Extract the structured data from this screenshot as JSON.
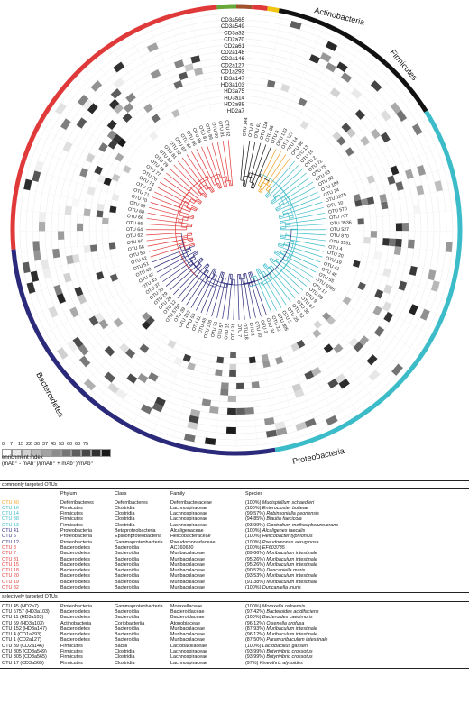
{
  "heatmap_labels": [
    "CD3a565",
    "CD3a549",
    "CD3a32",
    "CD2a70",
    "CD2a61",
    "CD2a148",
    "CD2a146",
    "CD2a127",
    "CD1a293",
    "HD3a147",
    "HD3a103",
    "HD3a75",
    "HD3a14",
    "HD2a88",
    "HD2a7"
  ],
  "phylum_arcs": [
    {
      "name": "Actinobacteria",
      "color": "#111111"
    },
    {
      "name": "Firmicutes",
      "color": "#3cbcc8"
    },
    {
      "name": "Proteobacteria",
      "color": "#2b2a7a"
    },
    {
      "name": "Bacteroidetes",
      "color": "#e0393a"
    }
  ],
  "top_arcs": [
    {
      "color": "#66a839"
    },
    {
      "color": "#a0522d"
    },
    {
      "color": "#e0393a"
    },
    {
      "color": "#f1c40f"
    }
  ],
  "tip_labels": [
    "OTU 144",
    "OTU 8",
    "OTU 61",
    "OTU 110",
    "OTU 88",
    "OTU 6",
    "OTU 133",
    "OTU 127",
    "OTU 14",
    "OTU 38",
    "OTU 13",
    "OTU 16",
    "OTU 2",
    "OTU 72",
    "OTU 75",
    "OTU 63",
    "OTU 53",
    "OTU 189",
    "OTU 24",
    "OTU 1275",
    "OTU 10",
    "OTU 570",
    "OTU 707",
    "OTU 3536",
    "OTU 527",
    "OTU 870",
    "OTU 3551",
    "OTU 4",
    "OTU 20",
    "OTU 19",
    "OTU 41",
    "OTU 48",
    "OTU 55",
    "OTU 1005",
    "OTU 17",
    "OTU 99",
    "OTU 9",
    "OTU 67",
    "OTU 30",
    "OTU 32",
    "OTU 25",
    "OTU 5",
    "OTU 805",
    "OTU 22",
    "OTU 34",
    "OTU 3",
    "OTU 40",
    "OTU 1",
    "OTU 18",
    "OTU 7",
    "OTU 31",
    "OTU 15",
    "OTU 57",
    "OTU 21",
    "OTU 126",
    "OTU 45",
    "OTU 11",
    "OTU 59",
    "OTU 152",
    "OTU 39",
    "OTU 5757",
    "OTU 12",
    "OTU 26",
    "OTU 29",
    "OTU 33",
    "OTU 37",
    "OTU 43",
    "OTU 47",
    "OTU 49",
    "OTU 51",
    "OTU 52",
    "OTU 56",
    "OTU 58",
    "OTU 60",
    "OTU 62",
    "OTU 64",
    "OTU 65",
    "OTU 66",
    "OTU 68",
    "OTU 69",
    "OTU 70",
    "OTU 71",
    "OTU 73",
    "OTU 74",
    "OTU 76",
    "OTU 77",
    "OTU 78",
    "OTU 79",
    "OTU 80",
    "OTU 81",
    "OTU 82",
    "OTU 83",
    "OTU 84",
    "OTU 85",
    "OTU 86",
    "OTU 87",
    "OTU 89",
    "OTU 90",
    "OTU 91",
    "OTU 92"
  ],
  "legend": {
    "ticks": [
      "0",
      "7",
      "15",
      "22",
      "30",
      "37",
      "45",
      "53",
      "60",
      "68",
      "75"
    ],
    "title": "enrichment index",
    "formula": "(mAb⁺ - mAb⁻)/(mAb⁺ + mAb⁻)*mAb⁺"
  },
  "common": {
    "title": "commonly targeted OTUs",
    "headers": {
      "phylum": "Phylum",
      "class": "Class",
      "family": "Family",
      "species": "Species"
    },
    "rows": [
      {
        "otu": "OTU 40",
        "color": "#f0a020",
        "phylum": "Deferribacteres",
        "class": "Deferribacteres",
        "family": "Deferribacteraceae",
        "pct": "(100%)",
        "species": "Mucispirillum schaedleri"
      },
      {
        "otu": "OTU 16",
        "color": "#3cbcc8",
        "phylum": "Firmicutes",
        "class": "Clostridia",
        "family": "Lachnospiraceae",
        "pct": "(100%)",
        "species": "Enterocloster bolteae"
      },
      {
        "otu": "OTU 14",
        "color": "#3cbcc8",
        "phylum": "Firmicutes",
        "class": "Clostridia",
        "family": "Lachnospiraceae",
        "pct": "(99.57%)",
        "species": "Robinsoniella peoriensis"
      },
      {
        "otu": "OTU 38",
        "color": "#3cbcc8",
        "phylum": "Firmicutes",
        "class": "Clostridia",
        "family": "Lachnospiraceae",
        "pct": "(94.85%)",
        "species": "Blautia faecicola"
      },
      {
        "otu": "OTU 13",
        "color": "#3cbcc8",
        "phylum": "Firmicutes",
        "class": "Clostridia",
        "family": "Lachnospiraceae",
        "pct": "(93.99%)",
        "species": "Clostridium methoxybenzovorans"
      },
      {
        "otu": "OTU 41",
        "color": "#2b2a7a",
        "phylum": "Proteobacteria",
        "class": "Betaproteobacteria",
        "family": "Alcaligenaceae",
        "pct": "(100%)",
        "species": "Alcaligenes faecalis"
      },
      {
        "otu": "OTU 6",
        "color": "#2b2a7a",
        "phylum": "Proteobacteria",
        "class": "Epsilonproteobacteria",
        "family": "Helicobacteraceae",
        "pct": "(100%)",
        "species": "Helicobacter typhlonius"
      },
      {
        "otu": "OTU 12",
        "color": "#2b2a7a",
        "phylum": "Proteobacteria",
        "class": "Gammaproteobacteria",
        "family": "Pseudomonadaceae",
        "pct": "(100%)",
        "species": "Pseudomonas aeruginosa"
      },
      {
        "otu": "OTU 8",
        "color": "#e0393a",
        "phylum": "Bacteroidetes",
        "class": "Bacteroidia",
        "family": "AC160630",
        "pct": "(100%)",
        "species": "EF603735"
      },
      {
        "otu": "OTU 7",
        "color": "#e0393a",
        "phylum": "Bacteroidetes",
        "class": "Bacteroidia",
        "family": "Muribaculaceae",
        "pct": "(89.66%)",
        "species": "Muribaculum intestinale"
      },
      {
        "otu": "OTU 31",
        "color": "#e0393a",
        "phylum": "Bacteroidetes",
        "class": "Bacteroidia",
        "family": "Muribaculaceae",
        "pct": "(95.26%)",
        "species": "Muribaculum intestinale"
      },
      {
        "otu": "OTU 15",
        "color": "#e0393a",
        "phylum": "Bacteroidetes",
        "class": "Bacteroidia",
        "family": "Muribaculaceae",
        "pct": "(95.26%)",
        "species": "Muribaculum intestinale"
      },
      {
        "otu": "OTU 18",
        "color": "#e0393a",
        "phylum": "Bacteroidetes",
        "class": "Bacteroidia",
        "family": "Muribaculaceae",
        "pct": "(90.52%)",
        "species": "Duncaniella muris"
      },
      {
        "otu": "OTU 20",
        "color": "#e0393a",
        "phylum": "Bacteroidetes",
        "class": "Bacteroidia",
        "family": "Muribaculaceae",
        "pct": "(93.53%)",
        "species": "Muribaculum intestinale"
      },
      {
        "otu": "OTU 19",
        "color": "#e0393a",
        "phylum": "Bacteroidetes",
        "class": "Bacteroidia",
        "family": "Muribaculaceae",
        "pct": "(91.38%)",
        "species": "Muribaculum intestinale"
      },
      {
        "otu": "OTU 32",
        "color": "#e0393a",
        "phylum": "Bacteroidetes",
        "class": "Bacteroidia",
        "family": "Muribaculaceae",
        "pct": "(100%)",
        "species": "Duncaniella muris"
      }
    ]
  },
  "selective": {
    "title": "selectively targeted OTUs",
    "rows": [
      {
        "otu": "OTU 45",
        "tag": "(HD2a7)",
        "phylum": "Proteobacteria",
        "class": "Gammaproteobacteria",
        "family": "Moraxellaceae",
        "pct": "(100%)",
        "species": "Moraxella osloensis"
      },
      {
        "otu": "OTU 5757",
        "tag": "(HD3a103)",
        "phylum": "Bacteroidetes",
        "class": "Bacteroidia",
        "family": "Bacteroidaceae",
        "pct": "(97.42%)",
        "species": "Bacteroides acidifaciens"
      },
      {
        "otu": "OTU 11",
        "tag": "(HD3a103)",
        "phylum": "Bacteroidetes",
        "class": "Bacteroidia",
        "family": "Bacteroidaceae",
        "pct": "(100%)",
        "species": "Bacteroides caecimuris"
      },
      {
        "otu": "OTU 59",
        "tag": "(HD3a103)",
        "phylum": "Actinobacteria",
        "class": "Coriobacteriia",
        "family": "Atopobiaceae",
        "pct": "(96.12%)",
        "species": "Olsenella profusa"
      },
      {
        "otu": "OTU 152",
        "tag": "(HD3a147)",
        "phylum": "Bacteroidetes",
        "class": "Bacteroidia",
        "family": "Muribaculaceae",
        "pct": "(87.93%)",
        "species": "Muribaculum intestinale"
      },
      {
        "otu": "OTU 4",
        "tag": "(CD1a293)",
        "phylum": "Bacteroidetes",
        "class": "Bacteroidia",
        "family": "Muribaculaceae",
        "pct": "(96.12%)",
        "species": "Muribaculum intestinale"
      },
      {
        "otu": "OTU 1",
        "tag": "(CD2a127)",
        "phylum": "Bacteroidetes",
        "class": "Bacteroidia",
        "family": "Muribaculaceae",
        "pct": "(87.50%)",
        "species": "Paramuribaculum intestinale"
      },
      {
        "otu": "OTU 39",
        "tag": "(CD2a146)",
        "phylum": "Firmicutes",
        "class": "Bacilli",
        "family": "Lactobacillaceae",
        "pct": "(100%)",
        "species": "Lactobacillus gasseri"
      },
      {
        "otu": "OTU 805",
        "tag": "(CD3a549)",
        "phylum": "Firmicutes",
        "class": "Clostridia",
        "family": "Lachnospiraceae",
        "pct": "(93.99%)",
        "species": "Butyrivibrio crossotus"
      },
      {
        "otu": "OTU 805",
        "tag": "(CD3a565)",
        "phylum": "Firmicutes",
        "class": "Clostridia",
        "family": "Lachnospiraceae",
        "pct": "(93.99%)",
        "species": "Butyrivibrio crossotus"
      },
      {
        "otu": "OTU 17",
        "tag": "(CD3a565)",
        "phylum": "Firmicutes",
        "class": "Clostridia",
        "family": "Lachnospiraceae",
        "pct": "(97%)",
        "species": "Kineothrix alysoides"
      }
    ]
  }
}
